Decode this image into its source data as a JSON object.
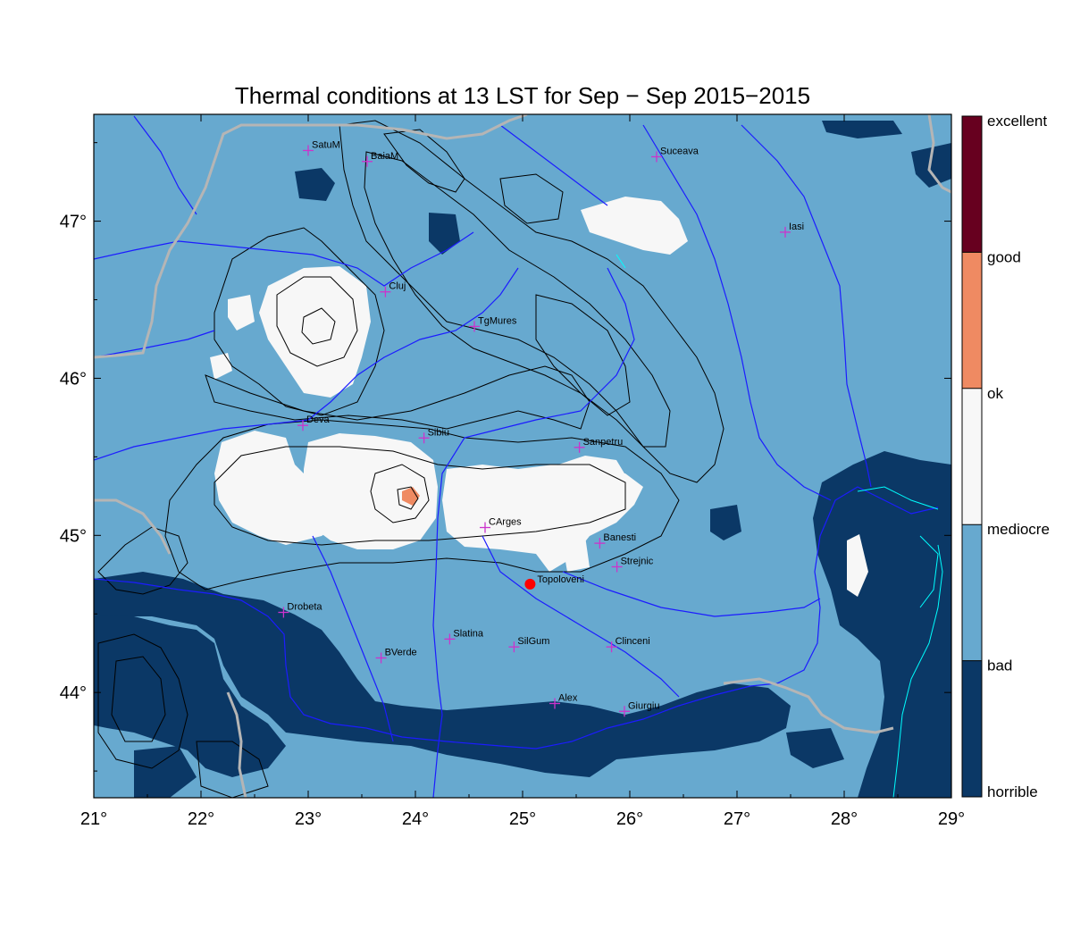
{
  "title": "Thermal conditions at 13 LST for Sep − Sep  2015−2015",
  "map": {
    "lon_range": [
      21,
      29
    ],
    "lat_range": [
      43.33,
      47.68
    ],
    "lon_ticks": [
      {
        "value": 21,
        "label": "21°"
      },
      {
        "value": 22,
        "label": "22°"
      },
      {
        "value": 23,
        "label": "23°"
      },
      {
        "value": 24,
        "label": "24°"
      },
      {
        "value": 25,
        "label": "25°"
      },
      {
        "value": 26,
        "label": "26°"
      },
      {
        "value": 27,
        "label": "27°"
      },
      {
        "value": 28,
        "label": "28°"
      },
      {
        "value": 29,
        "label": "29°"
      }
    ],
    "lat_ticks": [
      {
        "value": 44,
        "label": "44°"
      },
      {
        "value": 45,
        "label": "45°"
      },
      {
        "value": 46,
        "label": "46°"
      },
      {
        "value": 47,
        "label": "47°"
      }
    ],
    "colors": {
      "horrible": "#0b3866",
      "bad": "#67a9cf",
      "mediocre": "#f7f7f7",
      "ok": "#ef8a62",
      "good": "#ef8a62",
      "excellent": "#67001f",
      "river": "#1c1cff",
      "border": "#b5b5b5",
      "lake": "#00ffff",
      "station": "#cc33cc",
      "marker": "#ff0000"
    },
    "cities": [
      {
        "name": "SatuM",
        "lon": 23.0,
        "lat": 47.45
      },
      {
        "name": "BaiaM",
        "lon": 23.55,
        "lat": 47.38
      },
      {
        "name": "Suceava",
        "lon": 26.25,
        "lat": 47.41
      },
      {
        "name": "Iasi",
        "lon": 27.45,
        "lat": 46.93
      },
      {
        "name": "Cluj",
        "lon": 23.72,
        "lat": 46.55
      },
      {
        "name": "TgMures",
        "lon": 24.55,
        "lat": 46.33
      },
      {
        "name": "Deva",
        "lon": 22.95,
        "lat": 45.7
      },
      {
        "name": "Sibiu",
        "lon": 24.08,
        "lat": 45.62
      },
      {
        "name": "Sanpetru",
        "lon": 25.53,
        "lat": 45.56
      },
      {
        "name": "CArges",
        "lon": 24.65,
        "lat": 45.05
      },
      {
        "name": "Banesti",
        "lon": 25.72,
        "lat": 44.95
      },
      {
        "name": "Strejnic",
        "lon": 25.88,
        "lat": 44.8
      },
      {
        "name": "Drobeta",
        "lon": 22.77,
        "lat": 44.51
      },
      {
        "name": "Slatina",
        "lon": 24.32,
        "lat": 44.34
      },
      {
        "name": "SilGum",
        "lon": 24.92,
        "lat": 44.29
      },
      {
        "name": "Clinceni",
        "lon": 25.83,
        "lat": 44.29
      },
      {
        "name": "BVerde",
        "lon": 23.68,
        "lat": 44.22
      },
      {
        "name": "Alex",
        "lon": 25.3,
        "lat": 43.93
      },
      {
        "name": "Giurgiu",
        "lon": 25.95,
        "lat": 43.88
      }
    ],
    "highlight": {
      "name": "Topoloveni",
      "lon": 25.07,
      "lat": 44.69
    }
  },
  "legend": {
    "labels": [
      "excellent",
      "good",
      "ok",
      "mediocre",
      "bad",
      "horrible"
    ]
  }
}
